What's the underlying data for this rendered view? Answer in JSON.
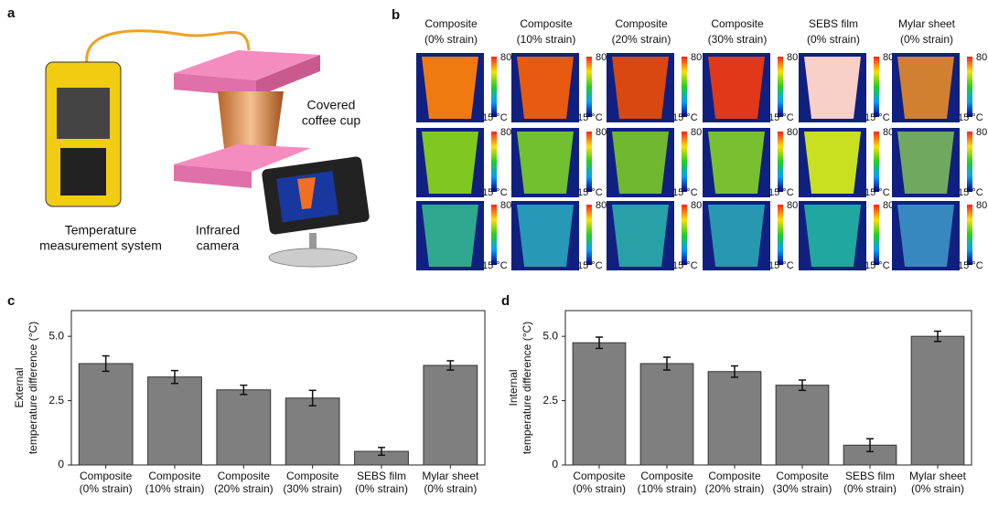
{
  "panel_labels": [
    "a",
    "b",
    "c",
    "d"
  ],
  "panel_a": {
    "meter_label": [
      "Temperature",
      "measurement system"
    ],
    "camera_label": [
      "Infrared",
      "camera"
    ],
    "cup_label": [
      "Covered",
      "coffee cup"
    ]
  },
  "panel_b": {
    "columns": [
      [
        "Composite",
        "(0% strain)"
      ],
      [
        "Composite",
        "(10% strain)"
      ],
      [
        "Composite",
        "(20% strain)"
      ],
      [
        "Composite",
        "(30% strain)"
      ],
      [
        "SEBS film",
        "(0% strain)"
      ],
      [
        "Mylar sheet",
        "(0% strain)"
      ]
    ],
    "scale_max": "80 °C",
    "scale_min": "15 °C"
  },
  "chart_data": [
    {
      "type": "bar",
      "ylabel": [
        "External",
        "temperature difference (°C)"
      ],
      "categories": [
        [
          "Composite",
          "(0% strain)"
        ],
        [
          "Composite",
          "(10% strain)"
        ],
        [
          "Composite",
          "(20% strain)"
        ],
        [
          "Composite",
          "(30% strain)"
        ],
        [
          "SEBS film",
          "(0% strain)"
        ],
        [
          "Mylar sheet",
          "(0% strain)"
        ]
      ],
      "values": [
        3.94,
        3.42,
        2.92,
        2.6,
        0.53,
        3.87
      ],
      "errors": [
        0.3,
        0.25,
        0.18,
        0.3,
        0.15,
        0.18
      ],
      "color": "#7f7f7f",
      "ylim": [
        0,
        6
      ],
      "yticks": [
        0,
        2.5,
        {
          "value": 5,
          "label": "5.0"
        }
      ]
    },
    {
      "type": "bar",
      "ylabel": [
        "Internal",
        "temperature difference (°C)"
      ],
      "categories": [
        [
          "Composite",
          "(0% strain)"
        ],
        [
          "Composite",
          "(10% strain)"
        ],
        [
          "Composite",
          "(20% strain)"
        ],
        [
          "Composite",
          "(30% strain)"
        ],
        [
          "SEBS film",
          "(0% strain)"
        ],
        [
          "Mylar sheet",
          "(0% strain)"
        ]
      ],
      "values": [
        4.75,
        3.94,
        3.63,
        3.1,
        0.77,
        5.0
      ],
      "errors": [
        0.22,
        0.25,
        0.22,
        0.2,
        0.25,
        0.2
      ],
      "color": "#7f7f7f",
      "ylim": [
        0,
        6
      ],
      "yticks": [
        0,
        2.5,
        {
          "value": 5,
          "label": "5.0"
        }
      ]
    }
  ]
}
